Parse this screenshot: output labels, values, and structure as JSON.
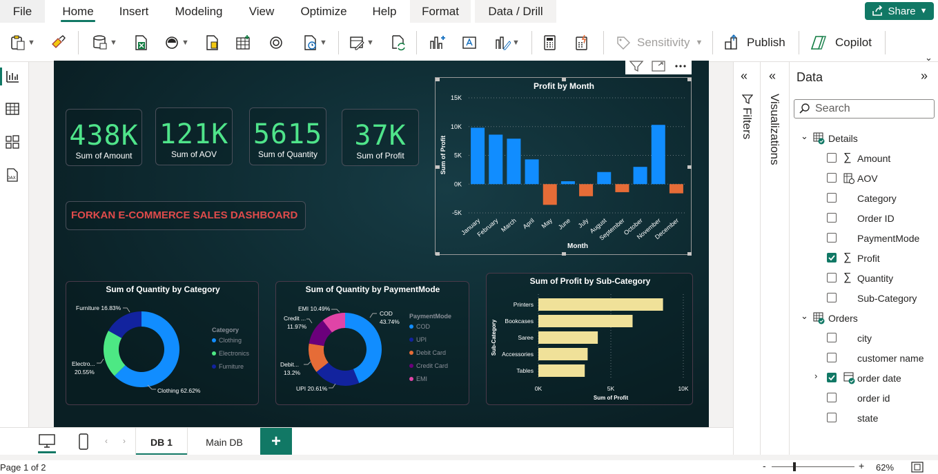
{
  "menu": {
    "tabs": [
      "File",
      "Home",
      "Insert",
      "Modeling",
      "View",
      "Optimize",
      "Help",
      "Format",
      "Data / Drill"
    ],
    "share": "Share"
  },
  "ribbon": {
    "sensitivity": "Sensitivity",
    "publish": "Publish",
    "copilot": "Copilot"
  },
  "kpis": [
    {
      "value": "438K",
      "label": "Sum of Amount"
    },
    {
      "value": "121K",
      "label": "Sum of AOV"
    },
    {
      "value": "5615",
      "label": "Sum of Quantity"
    },
    {
      "value": "37K",
      "label": "Sum of Profit"
    }
  ],
  "dashboard_title": "FORKAN E-COMMERCE SALES DASHBOARD",
  "colors": {
    "accent": "#117865",
    "kpi": "#4fe48a",
    "title": "#e04b4b",
    "positive": "#118dff",
    "negative": "#e66c37",
    "bar": "#f0e199"
  },
  "chart_data": [
    {
      "type": "bar",
      "title": "Profit by Month",
      "xlabel": "Month",
      "ylabel": "Sum of Profit",
      "categories": [
        "January",
        "February",
        "March",
        "April",
        "May",
        "June",
        "July",
        "August",
        "September",
        "October",
        "November",
        "December"
      ],
      "values": [
        9800,
        8600,
        7900,
        4300,
        -3600,
        500,
        -2100,
        2100,
        -1400,
        3000,
        10300,
        -1600
      ],
      "ylim": [
        -5000,
        15000
      ],
      "yticks": [
        "15K",
        "10K",
        "5K",
        "0K",
        "-5K"
      ]
    },
    {
      "type": "pie",
      "title": "Sum of Quantity by Category",
      "legend_title": "Category",
      "categories": [
        "Clothing",
        "Electronics",
        "Furniture"
      ],
      "values": [
        62.62,
        20.55,
        16.83
      ],
      "colors": [
        "#118dff",
        "#4de884",
        "#12239e"
      ],
      "labels": [
        "Clothing 62.62%",
        "Electro...",
        "20.55%",
        "Furniture 16.83%"
      ]
    },
    {
      "type": "pie",
      "title": "Sum of Quantity by PaymentMode",
      "legend_title": "PaymentMode",
      "categories": [
        "COD",
        "UPI",
        "Debit Card",
        "Credit Card",
        "EMI"
      ],
      "values": [
        43.74,
        20.61,
        13.2,
        11.97,
        10.49
      ],
      "colors": [
        "#118dff",
        "#12239e",
        "#e66c37",
        "#6b007b",
        "#e044a7"
      ],
      "labels": [
        "COD",
        "43.74%",
        "UPI 20.61%",
        "Debit...",
        "13.2%",
        "Credit ...",
        "11.97%",
        "EMI 10.49%"
      ]
    },
    {
      "type": "bar",
      "orientation": "horizontal",
      "title": "Sum of Profit by Sub-Category",
      "xlabel": "Sum of Profit",
      "ylabel": "Sub-Category",
      "categories": [
        "Printers",
        "Bookcases",
        "Saree",
        "Accessories",
        "Tables"
      ],
      "values": [
        8600,
        6500,
        4100,
        3400,
        3200
      ],
      "xlim": [
        0,
        10000
      ],
      "xticks": [
        "0K",
        "5K",
        "10K"
      ]
    }
  ],
  "panes": {
    "filters": "Filters",
    "visualizations": "Visualizations",
    "data": "Data",
    "search_placeholder": "Search"
  },
  "fields": [
    {
      "kind": "table",
      "label": "Details"
    },
    {
      "kind": "field",
      "label": "Amount",
      "icon": "sigma",
      "checked": false
    },
    {
      "kind": "field",
      "label": "AOV",
      "icon": "calc",
      "checked": false
    },
    {
      "kind": "field",
      "label": "Category",
      "icon": "",
      "checked": false
    },
    {
      "kind": "field",
      "label": "Order ID",
      "icon": "",
      "checked": false
    },
    {
      "kind": "field",
      "label": "PaymentMode",
      "icon": "",
      "checked": false
    },
    {
      "kind": "field",
      "label": "Profit",
      "icon": "sigma",
      "checked": true
    },
    {
      "kind": "field",
      "label": "Quantity",
      "icon": "sigma",
      "checked": false
    },
    {
      "kind": "field",
      "label": "Sub-Category",
      "icon": "",
      "checked": false
    },
    {
      "kind": "table",
      "label": "Orders"
    },
    {
      "kind": "field",
      "label": "city",
      "icon": "",
      "checked": false
    },
    {
      "kind": "field",
      "label": "customer name",
      "icon": "",
      "checked": false
    },
    {
      "kind": "field",
      "label": "order date",
      "icon": "date",
      "checked": true
    },
    {
      "kind": "field",
      "label": "order id",
      "icon": "",
      "checked": false
    },
    {
      "kind": "field",
      "label": "state",
      "icon": "",
      "checked": false
    }
  ],
  "pages": [
    "DB 1",
    "Main DB"
  ],
  "status": {
    "page": "Page 1 of 2",
    "zoom": "62%",
    "minus": "-",
    "plus": "+"
  }
}
